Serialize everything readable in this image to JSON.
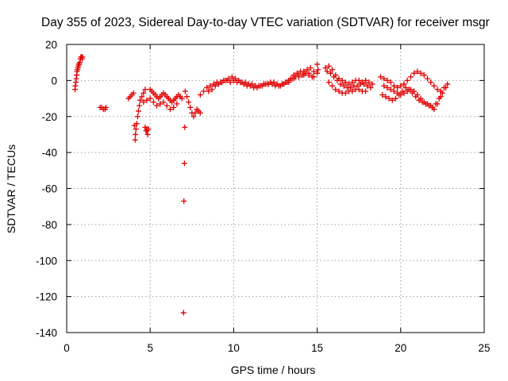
{
  "chart_data": {
    "type": "scatter",
    "title": "Day 355 of 2023, Sidereal Day-to-day VTEC variation (SDTVAR) for receiver msgr",
    "xlabel": "GPS time / hours",
    "ylabel": "SDTVAR / TECUs",
    "xlim": [
      0,
      25
    ],
    "ylim": [
      -140,
      20
    ],
    "xticks": [
      0,
      5,
      10,
      15,
      20,
      25
    ],
    "yticks": [
      -140,
      -120,
      -100,
      -80,
      -60,
      -40,
      -20,
      0,
      20
    ],
    "xtick_labels": [
      "0",
      "5",
      "10",
      "15",
      "20",
      "25"
    ],
    "ytick_labels": [
      "-140",
      "-120",
      "-100",
      "-80",
      "-60",
      "-40",
      "-20",
      "0",
      "20"
    ],
    "grid": true,
    "marker": "plus",
    "marker_color": "#e00000",
    "series": [
      {
        "name": "msgr",
        "x": [
          0.5,
          0.52,
          0.55,
          0.57,
          0.6,
          0.62,
          0.65,
          0.67,
          0.7,
          0.72,
          0.75,
          0.78,
          0.82,
          0.85,
          0.9,
          0.93,
          0.95,
          2.0,
          2.1,
          2.2,
          2.3,
          2.35,
          3.7,
          3.8,
          3.9,
          4.0,
          4.05,
          4.1,
          4.12,
          4.15,
          4.2,
          4.25,
          4.3,
          4.35,
          4.4,
          4.5,
          4.6,
          4.7,
          4.8,
          4.85,
          4.9,
          5.0,
          5.1,
          5.2,
          5.3,
          5.4,
          5.5,
          5.6,
          5.7,
          5.8,
          5.9,
          6.0,
          6.1,
          6.2,
          6.3,
          6.4,
          6.5,
          6.6,
          6.7,
          6.8,
          6.9,
          4.6,
          4.8,
          5.0,
          5.2,
          5.4,
          5.6,
          5.8,
          6.0,
          6.2,
          6.4,
          6.6,
          4.7,
          4.75,
          4.8,
          7.0,
          7.02,
          7.05,
          7.07,
          7.1,
          7.2,
          7.3,
          7.4,
          7.5,
          7.6,
          7.7,
          7.8,
          7.9,
          8.0,
          8.0,
          8.2,
          8.4,
          8.6,
          8.8,
          9.0,
          9.2,
          9.4,
          9.6,
          9.8,
          10.0,
          10.2,
          10.4,
          10.6,
          10.8,
          11.0,
          11.2,
          11.4,
          11.6,
          11.8,
          12.0,
          12.2,
          12.4,
          12.6,
          12.8,
          13.0,
          13.2,
          13.4,
          13.6,
          13.8,
          14.0,
          14.2,
          14.4,
          14.6,
          14.8,
          15.0,
          8.5,
          8.7,
          8.9,
          9.1,
          9.3,
          9.5,
          9.7,
          9.9,
          10.1,
          10.3,
          10.5,
          10.7,
          10.9,
          11.1,
          11.3,
          11.5,
          11.7,
          11.9,
          12.1,
          12.3,
          12.5,
          12.7,
          12.9,
          13.1,
          13.3,
          13.5,
          13.7,
          13.9,
          14.1,
          14.3,
          14.5,
          14.7,
          13.0,
          13.3,
          13.6,
          13.9,
          14.2,
          14.5,
          14.8,
          15.0,
          15.05,
          15.5,
          15.7,
          15.9,
          16.1,
          16.3,
          16.5,
          16.7,
          16.9,
          17.1,
          17.3,
          17.5,
          17.7,
          17.9,
          18.1,
          18.3,
          15.6,
          15.8,
          16.0,
          16.2,
          16.4,
          16.6,
          16.8,
          17.0,
          17.2,
          17.4,
          17.6,
          17.8,
          18.0,
          18.2,
          15.7,
          15.9,
          16.1,
          16.3,
          16.5,
          16.7,
          16.9,
          17.1,
          17.3,
          17.5,
          17.7,
          17.9,
          18.8,
          19.0,
          19.2,
          19.4,
          19.6,
          19.8,
          20.0,
          20.2,
          20.4,
          20.6,
          20.8,
          21.0,
          21.2,
          21.4,
          21.6,
          21.8,
          22.0,
          22.2,
          22.4,
          22.6,
          22.8,
          18.9,
          19.1,
          19.3,
          19.5,
          19.7,
          19.9,
          20.1,
          20.3,
          20.5,
          20.7,
          20.9,
          21.1,
          21.3,
          21.5,
          21.7,
          21.9,
          22.1,
          22.3,
          22.5,
          22.7,
          19.0,
          19.2,
          19.4,
          19.6,
          19.8,
          20.0,
          20.2,
          20.4,
          20.6,
          20.8,
          21.0,
          21.2,
          21.4,
          21.6,
          21.8,
          22.0,
          22.2,
          22.4
        ],
        "y": [
          -5,
          -3,
          -1,
          1,
          3,
          5,
          6,
          7,
          8,
          9,
          9,
          10,
          12,
          13,
          13,
          12,
          13,
          -15,
          -15,
          -16,
          -16,
          -15,
          -10,
          -9,
          -8,
          -7,
          -25,
          -33,
          -30,
          -27,
          -24,
          -20,
          -17,
          -14,
          -11,
          -9,
          -7,
          -5,
          -28,
          -30,
          -27,
          -5,
          -6,
          -7,
          -8,
          -9,
          -10,
          -9,
          -8,
          -7,
          -8,
          -9,
          -10,
          -11,
          -12,
          -11,
          -10,
          -9,
          -8,
          -9,
          -10,
          -12,
          -11,
          -10,
          -12,
          -14,
          -13,
          -12,
          -14,
          -16,
          -15,
          -13,
          -26,
          -28,
          -27,
          -129,
          -67,
          -46,
          -26,
          -6,
          -9,
          -12,
          -15,
          -18,
          -20,
          -18,
          -16,
          -17,
          -18,
          -8,
          -6,
          -4,
          -3,
          -2,
          -1,
          -1,
          0,
          0,
          -1,
          0,
          -1,
          -1,
          -2,
          -3,
          -3,
          -4,
          -4,
          -3,
          -2,
          -2,
          -1,
          -1,
          -2,
          -3,
          -2,
          -1,
          1,
          3,
          4,
          5,
          5,
          6,
          7,
          5,
          4,
          -6,
          -5,
          -3,
          -2,
          -1,
          0,
          1,
          2,
          1,
          0,
          -1,
          -1,
          -2,
          -2,
          -3,
          -3,
          -3,
          -2,
          -2,
          -2,
          -3,
          -3,
          -2,
          -1,
          0,
          1,
          2,
          3,
          3,
          4,
          3,
          2,
          -2,
          -1,
          1,
          2,
          3,
          4,
          2,
          9,
          6,
          7,
          8,
          6,
          3,
          1,
          0,
          -1,
          -2,
          -1,
          0,
          0,
          -1,
          0,
          -1,
          -2,
          5,
          4,
          2,
          0,
          -2,
          -3,
          -4,
          -4,
          -3,
          -3,
          -2,
          -2,
          -3,
          -4,
          -1,
          -3,
          -5,
          -6,
          -7,
          -7,
          -6,
          -6,
          -5,
          -5,
          -6,
          -6,
          2,
          1,
          0,
          -1,
          -3,
          -4,
          -3,
          -2,
          0,
          2,
          4,
          5,
          4,
          3,
          1,
          -1,
          -3,
          -5,
          -6,
          -4,
          -2,
          -8,
          -9,
          -10,
          -11,
          -10,
          -8,
          -6,
          -4,
          -5,
          -7,
          -9,
          -11,
          -12,
          -13,
          -14,
          -15,
          -13,
          -10,
          -7,
          -4,
          -3,
          -4,
          -5,
          -6,
          -7,
          -8,
          -7,
          -6,
          -5,
          -6,
          -8,
          -10,
          -12,
          -13,
          -14,
          -16,
          -13,
          -9
        ]
      }
    ]
  }
}
